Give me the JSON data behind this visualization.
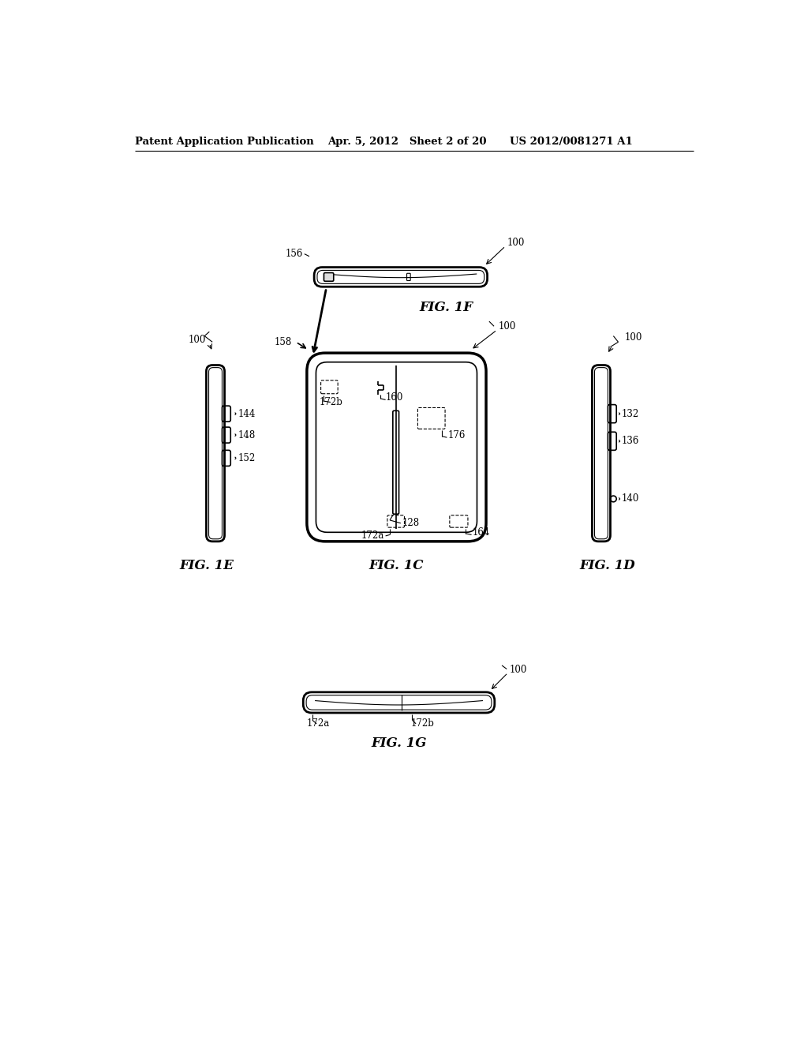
{
  "bg_color": "#ffffff",
  "line_color": "#000000",
  "header_left": "Patent Application Publication",
  "header_mid": "Apr. 5, 2012   Sheet 2 of 20",
  "header_right": "US 2012/0081271 A1"
}
